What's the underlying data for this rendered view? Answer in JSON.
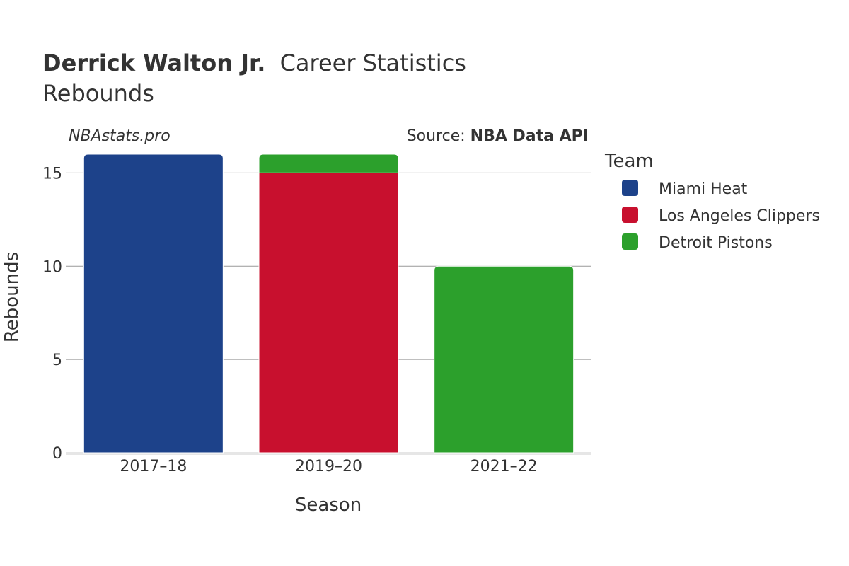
{
  "title": {
    "player": "Derrick Walton Jr.",
    "suffix": "Career Statistics",
    "subtitle": "Rebounds"
  },
  "watermark": "NBAstats.pro",
  "source": {
    "prefix": "Source: ",
    "name": "NBA Data API"
  },
  "legend": {
    "title": "Team"
  },
  "colors": {
    "Miami Heat": "#1d428a",
    "Los Angeles Clippers": "#c8102e",
    "Detroit Pistons": "#2ca02c",
    "grid": "#999999",
    "axis": "#e6e6e6"
  },
  "chart_data": {
    "type": "bar",
    "stacked": true,
    "title": "Derrick Walton Jr. Career Statistics",
    "subtitle": "Rebounds",
    "xlabel": "Season",
    "ylabel": "Rebounds",
    "categories": [
      "2017–18",
      "2019–20",
      "2021–22"
    ],
    "ylim": [
      0,
      16
    ],
    "yticks": [
      0,
      5,
      10,
      15
    ],
    "legend_position": "right",
    "series": [
      {
        "name": "Miami Heat",
        "values": [
          16,
          0,
          0
        ]
      },
      {
        "name": "Los Angeles Clippers",
        "values": [
          0,
          15,
          0
        ]
      },
      {
        "name": "Detroit Pistons",
        "values": [
          0,
          1,
          10
        ]
      }
    ]
  }
}
